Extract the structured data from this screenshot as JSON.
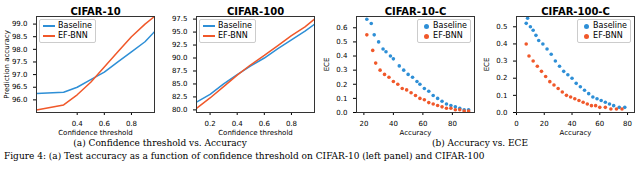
{
  "chart_data": [
    {
      "type": "line",
      "title": "CIFAR-10",
      "xlabel": "Confidence threshold",
      "ylabel": "Prediction accuracy",
      "x": [
        0.1,
        0.3,
        0.4,
        0.5,
        0.6,
        0.7,
        0.8,
        0.9,
        0.97
      ],
      "series": [
        {
          "name": "Baseline",
          "color": "#2e8fd6",
          "values": [
            96.25,
            96.3,
            96.5,
            96.8,
            97.1,
            97.5,
            97.9,
            98.3,
            98.7
          ]
        },
        {
          "name": "EF-BNN",
          "color": "#f0582a",
          "values": [
            95.6,
            95.8,
            96.2,
            96.7,
            97.3,
            97.9,
            98.5,
            99.0,
            99.3
          ]
        }
      ],
      "xlim": [
        0.1,
        0.97
      ],
      "xticks": [
        0.4,
        0.6,
        0.8
      ],
      "ylim": [
        95.5,
        99.3
      ],
      "yticks": [
        {
          "value": 96,
          "label": "96.0"
        },
        96.5,
        {
          "value": 97,
          "label": "97.0"
        },
        97.5,
        {
          "value": 98,
          "label": "98.0"
        },
        98.5,
        {
          "value": 99,
          "label": "99.0"
        }
      ],
      "legend": "upper left",
      "grid": false
    },
    {
      "type": "line",
      "title": "CIFAR-100",
      "xlabel": "Confidence threshold",
      "x": [
        0.1,
        0.2,
        0.3,
        0.4,
        0.5,
        0.6,
        0.7,
        0.8,
        0.9,
        0.97
      ],
      "series": [
        {
          "name": "Baseline",
          "color": "#2e8fd6",
          "values": [
            81.5,
            83.0,
            85.0,
            86.8,
            88.5,
            90.0,
            91.8,
            93.5,
            95.2,
            96.5
          ]
        },
        {
          "name": "EF-BNN",
          "color": "#f0582a",
          "values": [
            80.3,
            82.3,
            84.5,
            86.7,
            88.7,
            90.5,
            92.4,
            94.3,
            96.0,
            97.5
          ]
        }
      ],
      "xlim": [
        0.1,
        0.97
      ],
      "xticks": [
        0.2,
        0.4,
        0.6,
        0.8
      ],
      "ylim": [
        79.5,
        98
      ],
      "yticks": [
        {
          "value": 80,
          "label": "80.0"
        },
        82.5,
        {
          "value": 85,
          "label": "85.0"
        },
        87.5,
        {
          "value": 90,
          "label": "90.0"
        },
        92.5,
        {
          "value": 95,
          "label": "95.0"
        },
        97.5
      ],
      "legend": "upper left",
      "grid": false
    },
    {
      "type": "scatter",
      "title": "CIFAR-10-C",
      "xlabel": "Accuracy",
      "ylabel": "ECE",
      "series": [
        {
          "name": "Baseline",
          "color": "#2e8fd6",
          "marker": "o",
          "x": [
            22,
            25,
            27,
            30,
            33,
            35,
            38,
            40,
            44,
            47,
            50,
            53,
            56,
            58,
            61,
            64,
            67,
            70,
            73,
            76,
            79,
            82,
            85,
            88,
            91
          ],
          "values": [
            0.66,
            0.63,
            0.55,
            0.5,
            0.45,
            0.43,
            0.4,
            0.38,
            0.33,
            0.3,
            0.27,
            0.25,
            0.22,
            0.2,
            0.17,
            0.15,
            0.12,
            0.1,
            0.08,
            0.06,
            0.05,
            0.04,
            0.03,
            0.02,
            0.02
          ]
        },
        {
          "name": "EF-BNN",
          "color": "#f0582a",
          "marker": "o",
          "x": [
            22,
            26,
            28,
            31,
            34,
            37,
            40,
            43,
            46,
            49,
            52,
            55,
            58,
            61,
            64,
            67,
            70,
            73,
            76,
            79,
            82,
            85,
            88,
            91
          ],
          "values": [
            0.55,
            0.44,
            0.35,
            0.3,
            0.27,
            0.25,
            0.22,
            0.2,
            0.17,
            0.16,
            0.14,
            0.12,
            0.1,
            0.09,
            0.07,
            0.06,
            0.05,
            0.04,
            0.03,
            0.03,
            0.02,
            0.02,
            0.01,
            0.01
          ]
        }
      ],
      "xlim": [
        15,
        95
      ],
      "xticks": [
        20,
        40,
        60,
        80
      ],
      "ylim": [
        0,
        0.68
      ],
      "yticks": [
        {
          "value": 0,
          "label": "0.0"
        },
        0.1,
        0.2,
        0.3,
        0.4,
        0.5,
        0.6
      ],
      "legend": "upper right",
      "grid": false
    },
    {
      "type": "scatter",
      "title": "CIFAR-100-C",
      "xlabel": "Accuracy",
      "ylabel": "ECE",
      "series": [
        {
          "name": "Baseline",
          "color": "#2e8fd6",
          "marker": "o",
          "x": [
            7,
            8,
            10,
            12,
            14,
            16,
            19,
            22,
            25,
            28,
            31,
            34,
            37,
            40,
            43,
            46,
            49,
            52,
            55,
            58,
            61,
            64,
            67,
            70,
            74,
            78
          ],
          "values": [
            0.52,
            0.55,
            0.5,
            0.48,
            0.45,
            0.42,
            0.4,
            0.37,
            0.34,
            0.3,
            0.27,
            0.24,
            0.22,
            0.2,
            0.17,
            0.15,
            0.13,
            0.11,
            0.09,
            0.08,
            0.07,
            0.06,
            0.05,
            0.04,
            0.03,
            0.03
          ]
        },
        {
          "name": "EF-BNN",
          "color": "#f0582a",
          "marker": "o",
          "x": [
            7,
            9,
            12,
            15,
            18,
            21,
            24,
            27,
            30,
            33,
            36,
            39,
            42,
            45,
            48,
            51,
            54,
            57,
            60,
            64,
            68,
            72,
            76
          ],
          "values": [
            0.4,
            0.33,
            0.3,
            0.27,
            0.24,
            0.21,
            0.18,
            0.16,
            0.14,
            0.12,
            0.1,
            0.09,
            0.08,
            0.07,
            0.06,
            0.05,
            0.04,
            0.04,
            0.03,
            0.03,
            0.02,
            0.02,
            0.02
          ]
        }
      ],
      "xlim": [
        0,
        85
      ],
      "xticks": [
        0,
        20,
        40,
        60,
        80
      ],
      "ylim": [
        0,
        0.56
      ],
      "yticks": [
        {
          "value": 0,
          "label": "0.0"
        },
        0.1,
        0.2,
        0.3,
        0.4,
        0.5
      ],
      "legend": "upper right",
      "grid": false
    }
  ],
  "subcaptions": [
    "(a) Confidence threshold vs. Accuracy",
    "(b) Accuracy vs. ECE"
  ],
  "caption": "Figure 4: (a) Test accuracy as a function of confidence threshold on CIFAR-10 (left panel) and CIFAR-100"
}
